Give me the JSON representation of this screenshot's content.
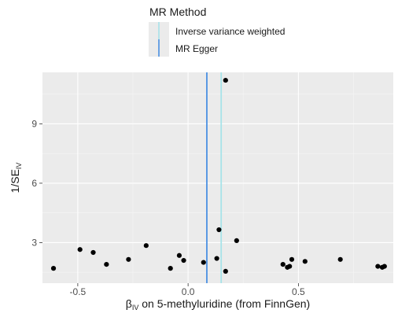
{
  "chart_data": {
    "type": "scatter",
    "legend": {
      "title": "MR Method",
      "placement": "top",
      "entries": [
        {
          "name": "Inverse variance weighted",
          "color": "#a6e3e9"
        },
        {
          "name": "MR Egger",
          "color": "#4a90e2"
        }
      ]
    },
    "x_axis": {
      "label_prefix": "β",
      "label_sub": "IV",
      "label_rest": " on 5-methyluridine (from FinnGen)",
      "range": [
        -0.66,
        0.93
      ],
      "ticks": [
        -0.5,
        0.0,
        0.5
      ],
      "tick_labels": [
        "-0.5",
        "0.0",
        "0.5"
      ]
    },
    "y_axis": {
      "label_main": "1/SE",
      "label_sub": "IV",
      "range": [
        0.95,
        11.6
      ],
      "ticks": [
        3,
        6,
        9
      ],
      "tick_labels": [
        "3",
        "6",
        "9"
      ]
    },
    "grid": true,
    "points": [
      {
        "x": 0.17,
        "y": 11.2
      },
      {
        "x": 0.14,
        "y": 3.65
      },
      {
        "x": 0.22,
        "y": 3.1
      },
      {
        "x": -0.49,
        "y": 2.65
      },
      {
        "x": -0.43,
        "y": 2.5
      },
      {
        "x": -0.19,
        "y": 2.85
      },
      {
        "x": -0.61,
        "y": 1.7
      },
      {
        "x": -0.37,
        "y": 1.9
      },
      {
        "x": -0.27,
        "y": 2.15
      },
      {
        "x": -0.04,
        "y": 2.35
      },
      {
        "x": -0.02,
        "y": 2.1
      },
      {
        "x": -0.08,
        "y": 1.7
      },
      {
        "x": 0.07,
        "y": 2.0
      },
      {
        "x": 0.13,
        "y": 2.2
      },
      {
        "x": 0.17,
        "y": 1.55
      },
      {
        "x": 0.43,
        "y": 1.9
      },
      {
        "x": 0.45,
        "y": 1.75
      },
      {
        "x": 0.46,
        "y": 1.8
      },
      {
        "x": 0.47,
        "y": 2.15
      },
      {
        "x": 0.53,
        "y": 2.05
      },
      {
        "x": 0.69,
        "y": 2.15
      },
      {
        "x": 0.86,
        "y": 1.8
      },
      {
        "x": 0.88,
        "y": 1.75
      },
      {
        "x": 0.89,
        "y": 1.8
      }
    ],
    "lines": [
      {
        "name": "MR Egger",
        "x": 0.085,
        "color": "#4a90e2"
      },
      {
        "name": "Inverse variance weighted",
        "x": 0.15,
        "color": "#a6e3e9"
      }
    ]
  }
}
